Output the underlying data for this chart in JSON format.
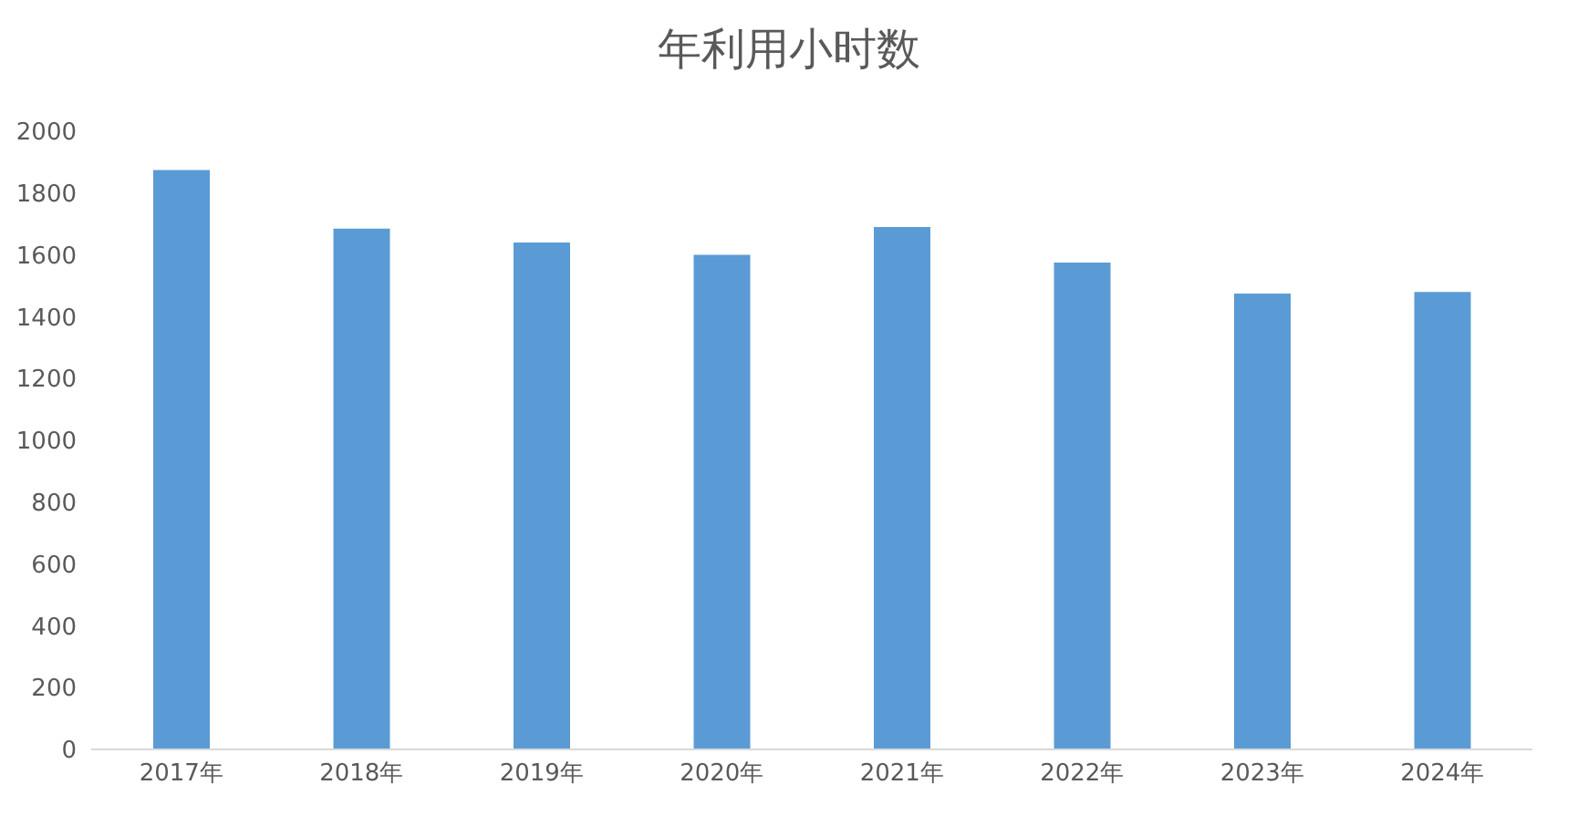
{
  "chart_data": {
    "type": "bar",
    "title": "年利用小时数",
    "categories": [
      "2017年",
      "2018年",
      "2019年",
      "2020年",
      "2021年",
      "2022年",
      "2023年",
      "2024年"
    ],
    "values": [
      1875,
      1685,
      1640,
      1600,
      1690,
      1575,
      1475,
      1480
    ],
    "color": "#5b9bd5",
    "ylim": [
      0,
      2000
    ],
    "yticks": [
      0,
      200,
      400,
      600,
      800,
      1000,
      1200,
      1400,
      1600,
      1800,
      2000
    ]
  }
}
